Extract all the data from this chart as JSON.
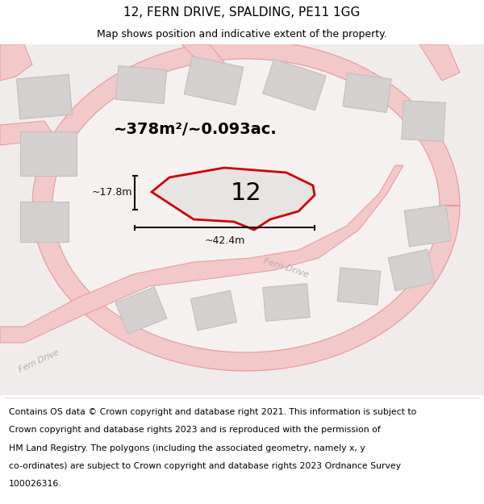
{
  "title_line1": "12, FERN DRIVE, SPALDING, PE11 1GG",
  "title_line2": "Map shows position and indicative extent of the property.",
  "area_label": "~378m²/~0.093ac.",
  "width_label": "~42.4m",
  "height_label": "~17.8m",
  "plot_number": "12",
  "footer_lines": [
    "Contains OS data © Crown copyright and database right 2021. This information is subject to",
    "Crown copyright and database rights 2023 and is reproduced with the permission of",
    "HM Land Registry. The polygons (including the associated geometry, namely x, y",
    "co-ordinates) are subject to Crown copyright and database rights 2023 Ordnance Survey",
    "100026316."
  ],
  "map_bg": "#f7f3f3",
  "road_color": "#f2c8c8",
  "road_edge_color": "#e89898",
  "building_fill": "#d4d0d0",
  "building_edge": "#c0bcbc",
  "plot_fill": "#e8e4e4",
  "plot_edge": "#cc0000",
  "dim_color": "#111111",
  "text_light": "#b8aaaa",
  "title_fs": 11,
  "subtitle_fs": 9,
  "footer_fs": 7.8,
  "area_fs": 14,
  "number_fs": 22,
  "dim_fs": 9
}
